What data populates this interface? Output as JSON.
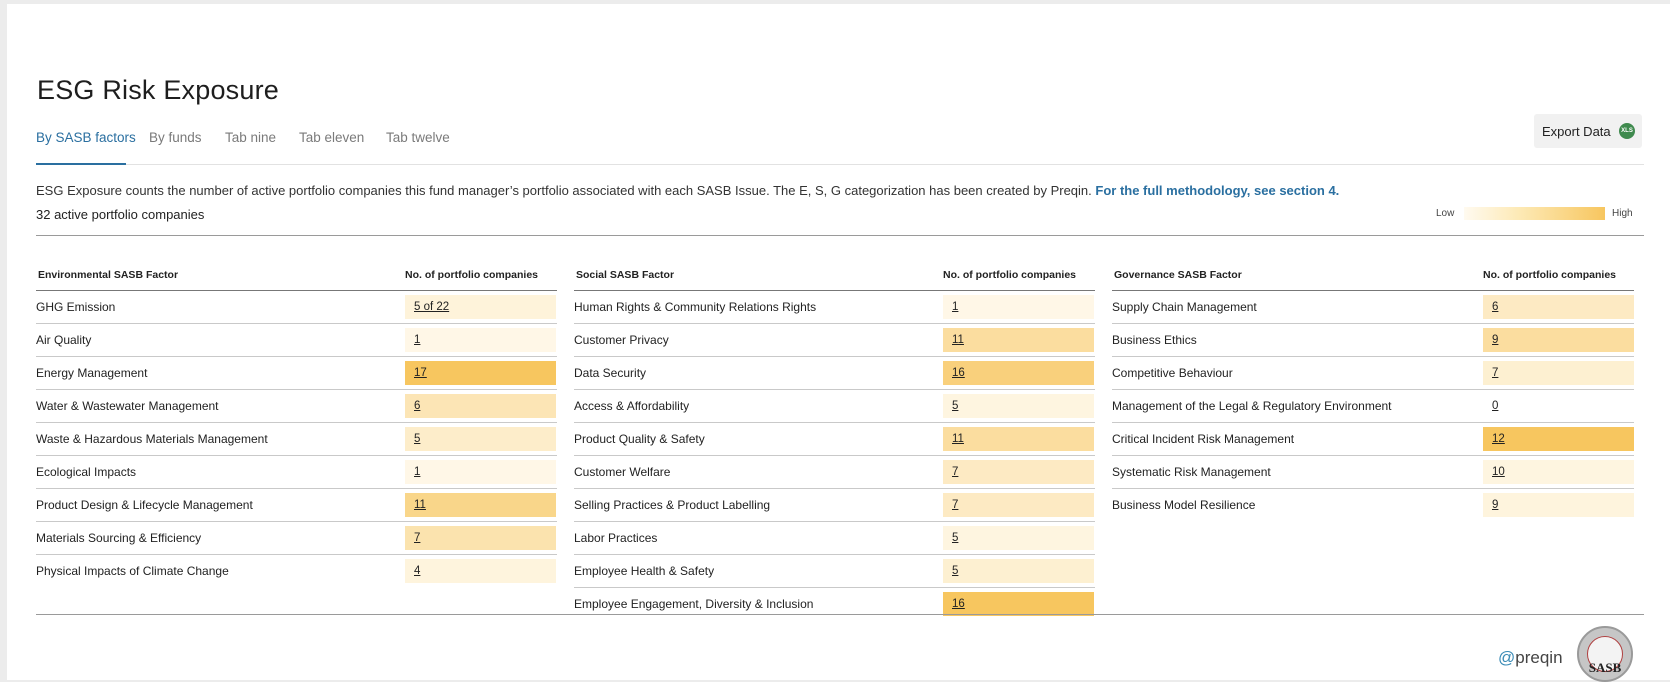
{
  "page": {
    "title": "ESG Risk Exposure",
    "tabs": [
      {
        "label": "By SASB factors",
        "active": true
      },
      {
        "label": "By funds",
        "active": false
      },
      {
        "label": "Tab nine",
        "active": false
      },
      {
        "label": "Tab eleven",
        "active": false
      },
      {
        "label": "Tab twelve",
        "active": false
      }
    ],
    "export": {
      "label": "Export Data",
      "icon": "xls-icon",
      "icon_text": "XLS"
    },
    "description": "ESG Exposure counts the number of active portfolio companies this fund manager’s portfolio associated with each SASB Issue. The E, S, G categorization has been created by Preqin.",
    "methodology_link": "For the full methodology, see section 4.",
    "active_companies": "32 active portfolio companies",
    "legend": {
      "low": "Low",
      "high": "High"
    },
    "colors": {
      "accent": "#2a6fa0",
      "heat_low": "#fffaf0",
      "heat_high": "#f7c65f"
    }
  },
  "columns": [
    {
      "factor_header": "Environmental SASB Factor",
      "count_header": "No. of portfolio companies",
      "rows": [
        {
          "factor": "GHG Emission",
          "value": "5 of 22",
          "intensity": 0.14
        },
        {
          "factor": "Air Quality",
          "value": "1",
          "intensity": 0.05
        },
        {
          "factor": "Energy Management",
          "value": "17",
          "intensity": 1.0
        },
        {
          "factor": "Water & Wastewater Management",
          "value": "6",
          "intensity": 0.4
        },
        {
          "factor": "Waste & Hazardous Materials Management",
          "value": "5",
          "intensity": 0.25
        },
        {
          "factor": "Ecological Impacts",
          "value": "1",
          "intensity": 0.05
        },
        {
          "factor": "Product Design & Lifecycle Management",
          "value": "11",
          "intensity": 0.7
        },
        {
          "factor": "Materials Sourcing & Efficiency",
          "value": "7",
          "intensity": 0.45
        },
        {
          "factor": "Physical Impacts of Climate Change",
          "value": "4",
          "intensity": 0.12
        }
      ]
    },
    {
      "factor_header": "Social SASB Factor",
      "count_header": "No. of portfolio companies",
      "rows": [
        {
          "factor": "Human Rights & Community Relations Rights",
          "value": "1",
          "intensity": 0.05
        },
        {
          "factor": "Customer Privacy",
          "value": "11",
          "intensity": 0.55
        },
        {
          "factor": "Data Security",
          "value": "16",
          "intensity": 0.8
        },
        {
          "factor": "Access & Affordability",
          "value": "5",
          "intensity": 0.1
        },
        {
          "factor": "Product Quality & Safety",
          "value": "11",
          "intensity": 0.55
        },
        {
          "factor": "Customer Welfare",
          "value": "7",
          "intensity": 0.3
        },
        {
          "factor": "Selling Practices & Product Labelling",
          "value": "7",
          "intensity": 0.3
        },
        {
          "factor": "Labor Practices",
          "value": "5",
          "intensity": 0.1
        },
        {
          "factor": "Employee Health & Safety",
          "value": "5",
          "intensity": 0.2
        },
        {
          "factor": "Employee Engagement, Diversity & Inclusion",
          "value": "16",
          "intensity": 1.0
        }
      ]
    },
    {
      "factor_header": "Governance SASB Factor",
      "count_header": "No. of portfolio companies",
      "rows": [
        {
          "factor": "Supply Chain Management",
          "value": "6",
          "intensity": 0.3
        },
        {
          "factor": "Business Ethics",
          "value": "9",
          "intensity": 0.55
        },
        {
          "factor": "Competitive Behaviour",
          "value": "7",
          "intensity": 0.2
        },
        {
          "factor": "Management of the Legal & Regulatory Environment",
          "value": "0",
          "intensity": 0
        },
        {
          "factor": "Critical Incident Risk Management",
          "value": "12",
          "intensity": 1.0
        },
        {
          "factor": "Systematic Risk Management",
          "value": "10",
          "intensity": 0.1
        },
        {
          "factor": "Business Model Resilience",
          "value": "9",
          "intensity": 0.12
        }
      ]
    }
  ],
  "footer": {
    "preqin_logo": "preqin",
    "sasb_logo": "SASB"
  }
}
